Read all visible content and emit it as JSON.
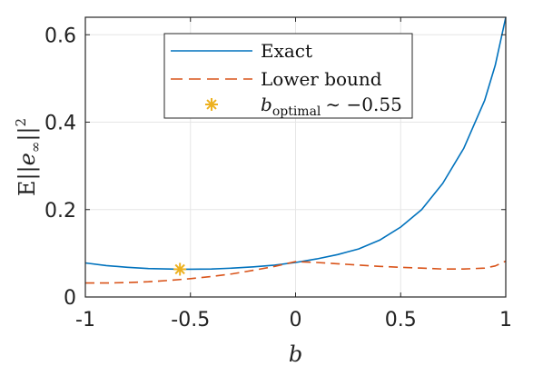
{
  "chart_data": {
    "type": "line",
    "xlim": [
      -1,
      1
    ],
    "ylim": [
      0,
      0.64
    ],
    "x_ticks": [
      -1,
      -0.5,
      0,
      0.5,
      1
    ],
    "x_tick_labels": [
      "-1",
      "-0.5",
      "0",
      "0.5",
      "1"
    ],
    "y_ticks": [
      0,
      0.2,
      0.4,
      0.6
    ],
    "y_tick_labels": [
      "0",
      "0.2",
      "0.4",
      "0.6"
    ],
    "xlabel": "b",
    "ylabel": {
      "prefix": "E",
      "norm_open": "||",
      "var": "e",
      "sub": "∞",
      "norm_close": "||",
      "sup": "2"
    },
    "grid": true,
    "legend_position": "top-center",
    "series": [
      {
        "name": "Exact",
        "color": "#0072bd",
        "style": "solid",
        "x": [
          -1.0,
          -0.9,
          -0.8,
          -0.7,
          -0.6,
          -0.55,
          -0.5,
          -0.4,
          -0.3,
          -0.2,
          -0.1,
          0.0,
          0.1,
          0.2,
          0.3,
          0.4,
          0.5,
          0.6,
          0.7,
          0.8,
          0.9,
          0.95,
          1.0
        ],
        "y": [
          0.078,
          0.072,
          0.068,
          0.065,
          0.064,
          0.0635,
          0.0635,
          0.064,
          0.066,
          0.069,
          0.073,
          0.079,
          0.087,
          0.097,
          0.11,
          0.13,
          0.16,
          0.2,
          0.26,
          0.34,
          0.45,
          0.53,
          0.64
        ]
      },
      {
        "name": "Lower bound",
        "color": "#d95319",
        "style": "dashed",
        "x": [
          -1.0,
          -0.9,
          -0.8,
          -0.7,
          -0.6,
          -0.5,
          -0.4,
          -0.3,
          -0.2,
          -0.1,
          0.0,
          0.1,
          0.2,
          0.3,
          0.4,
          0.5,
          0.6,
          0.7,
          0.8,
          0.9,
          0.95,
          1.0
        ],
        "y": [
          0.032,
          0.032,
          0.033,
          0.035,
          0.038,
          0.042,
          0.047,
          0.053,
          0.061,
          0.07,
          0.081,
          0.079,
          0.076,
          0.073,
          0.07,
          0.068,
          0.066,
          0.064,
          0.064,
          0.066,
          0.071,
          0.082
        ]
      }
    ],
    "marker": {
      "label_var": "b",
      "label_sub": "optimal",
      "label_rest": "∼ −0.55",
      "x": -0.55,
      "y": 0.0635,
      "color": "#edb120",
      "symbol": "asterisk"
    }
  }
}
